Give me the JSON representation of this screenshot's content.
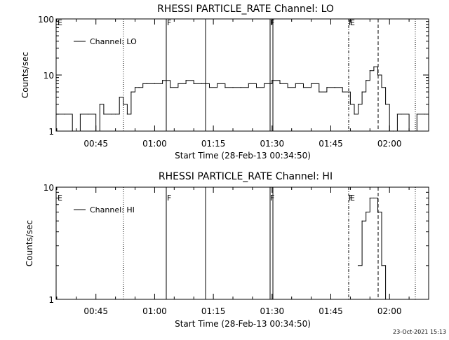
{
  "chart_data": [
    {
      "type": "line",
      "title": "RHESSI PARTICLE_RATE Channel: LO",
      "xlabel": "Start Time (28-Feb-13 00:34:50)",
      "ylabel": "Counts/sec",
      "y_scale": "log",
      "ylim": [
        1,
        100
      ],
      "y_ticks": [
        "1",
        "10",
        "100"
      ],
      "x_ticks": [
        "00:45",
        "01:00",
        "01:15",
        "01:30",
        "01:45",
        "02:00"
      ],
      "legend": {
        "label": "Channel: LO",
        "placement": "top-left"
      },
      "series": [
        {
          "name": "Channel: LO",
          "x": [
            "00:35",
            "00:37",
            "00:39",
            "00:41",
            "00:43",
            "00:45",
            "00:46",
            "00:47",
            "00:49",
            "00:50",
            "00:51",
            "00:52",
            "00:53",
            "00:54",
            "00:55",
            "00:56",
            "00:57",
            "00:58",
            "01:00",
            "01:02",
            "01:04",
            "01:06",
            "01:08",
            "01:10",
            "01:12",
            "01:14",
            "01:16",
            "01:18",
            "01:20",
            "01:22",
            "01:24",
            "01:26",
            "01:28",
            "01:30",
            "01:32",
            "01:34",
            "01:36",
            "01:38",
            "01:40",
            "01:42",
            "01:44",
            "01:46",
            "01:48",
            "01:50",
            "01:51",
            "01:52",
            "01:53",
            "01:54",
            "01:55",
            "01:56",
            "01:57",
            "01:58",
            "01:59",
            "02:00",
            "02:01",
            "02:02",
            "02:03",
            "02:05",
            "02:07",
            "02:09"
          ],
          "values": [
            2,
            2,
            1,
            2,
            2,
            1,
            3,
            2,
            2,
            2,
            4,
            3,
            2,
            5,
            6,
            6,
            7,
            7,
            7,
            8,
            6,
            7,
            8,
            7,
            7,
            6,
            7,
            6,
            6,
            6,
            7,
            6,
            7,
            8,
            7,
            6,
            7,
            6,
            7,
            5,
            6,
            6,
            5,
            3,
            2,
            3,
            5,
            8,
            12,
            14,
            10,
            6,
            3,
            1,
            1,
            2,
            2,
            1,
            2,
            2
          ]
        }
      ],
      "annotations": [
        "F",
        "F",
        "F",
        "E",
        "E"
      ]
    },
    {
      "type": "line",
      "title": "RHESSI PARTICLE_RATE Channel: HI",
      "xlabel": "Start Time (28-Feb-13 00:34:50)",
      "ylabel": "Counts/sec",
      "y_scale": "log",
      "ylim": [
        1,
        10
      ],
      "y_ticks": [
        "1",
        "10"
      ],
      "x_ticks": [
        "00:45",
        "01:00",
        "01:15",
        "01:30",
        "01:45",
        "02:00"
      ],
      "legend": {
        "label": "Channel: HI",
        "placement": "top-left"
      },
      "series": [
        {
          "name": "Channel: HI",
          "x": [
            "01:52",
            "01:53",
            "01:54",
            "01:55",
            "01:56",
            "01:57",
            "01:58",
            "01:59"
          ],
          "values": [
            2,
            5,
            6,
            8,
            8,
            6,
            2,
            1
          ]
        }
      ],
      "annotations": [
        "F",
        "F",
        "F",
        "E",
        "E"
      ]
    }
  ],
  "footer": {
    "timestamp": "23-Oct-2021 15:13"
  }
}
